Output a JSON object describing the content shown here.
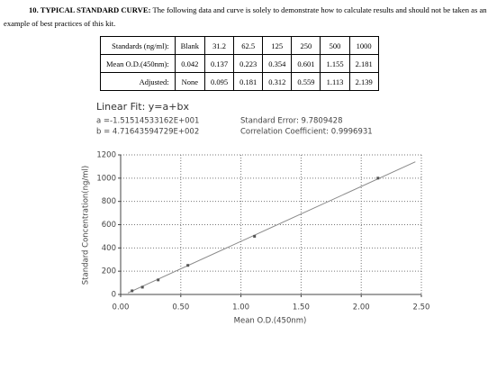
{
  "heading": {
    "title": "10. TYPICAL STANDARD CURVE:",
    "text": "The following data and curve is solely to demonstrate how to calculate results and should not be taken as an example of best practices of this kit."
  },
  "table": {
    "rows": [
      [
        "Standards (ng/ml):",
        "Blank",
        "31.2",
        "62.5",
        "125",
        "250",
        "500",
        "1000"
      ],
      [
        "Mean O.D.(450nm):",
        "0.042",
        "0.137",
        "0.223",
        "0.354",
        "0.601",
        "1.155",
        "2.181"
      ],
      [
        "Adjusted:",
        "None",
        "0.095",
        "0.181",
        "0.312",
        "0.559",
        "1.113",
        "2.139"
      ]
    ]
  },
  "chart_data": {
    "type": "scatter",
    "title": "Linear Fit: y=a+bx",
    "annotations": [
      "a =-1.51514533162E+001",
      "b = 4.71643594729E+002",
      "Standard Error: 9.7809428",
      "Correlation Coefficient: 0.9996931"
    ],
    "xlabel": "Mean O.D.(450nm)",
    "ylabel": "Standard Concentration(ng/ml)",
    "x": [
      0.095,
      0.181,
      0.312,
      0.559,
      1.113,
      2.139
    ],
    "values": [
      31.2,
      62.5,
      125,
      250,
      500,
      1000
    ],
    "color": "#555555",
    "fit": {
      "x": [
        0.06,
        2.45
      ],
      "values": [
        13.1,
        1140.4
      ],
      "color": "#888888"
    },
    "xlim": [
      0,
      2.5
    ],
    "xticks": [
      {
        "value": 0,
        "label": "0.00"
      },
      {
        "value": 0.5,
        "label": "0.50"
      },
      {
        "value": 1,
        "label": "1.00"
      },
      {
        "value": 1.5,
        "label": "1.50"
      },
      {
        "value": 2,
        "label": "2.00"
      },
      {
        "value": 2.5,
        "label": "2.50"
      }
    ],
    "ylim": [
      0,
      1200
    ],
    "yticks": [
      0,
      200,
      400,
      600,
      800,
      1000,
      1200
    ],
    "grid": true
  }
}
